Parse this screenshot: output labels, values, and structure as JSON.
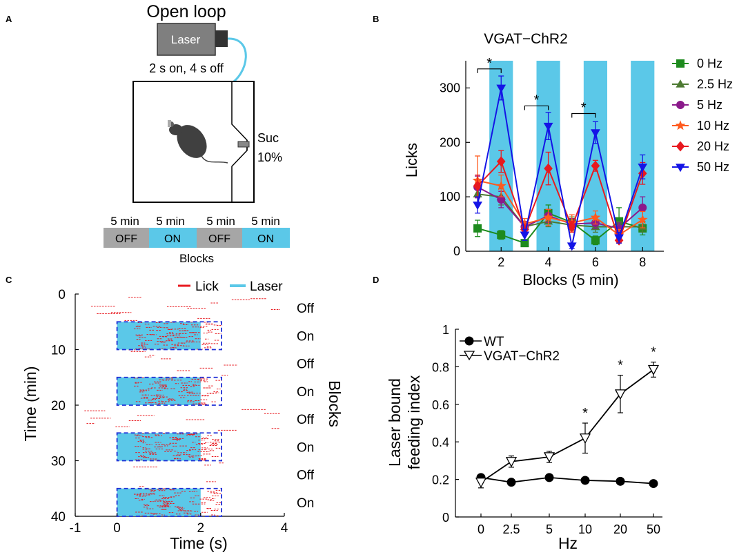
{
  "panel_labels": [
    "A",
    "B",
    "C",
    "D"
  ],
  "colors": {
    "laser_blue": "#5bc8e8",
    "lick_red": "#e8191f",
    "box_gray": "#7f7f7f",
    "mouse_dark": "#404040",
    "dashed_blue": "#1f2fd6"
  },
  "panel_a": {
    "title": "Open loop",
    "laser_label": "Laser",
    "schedule": "2 s on, 4 s off",
    "sucrose_label": "Suc",
    "sucrose_pct": "10%",
    "blocks": [
      {
        "duration": "5 min",
        "state": "OFF"
      },
      {
        "duration": "5 min",
        "state": "ON"
      },
      {
        "duration": "5 min",
        "state": "OFF"
      },
      {
        "duration": "5 min",
        "state": "ON"
      }
    ],
    "blocks_label": "Blocks"
  },
  "chart_data": [
    {
      "panel": "B",
      "type": "line",
      "title": "VGAT−ChR2",
      "xlabel": "Blocks (5 min)",
      "ylabel": "Licks",
      "xlim": [
        0.5,
        8.9
      ],
      "ylim": [
        0,
        350
      ],
      "xticks": [
        2,
        4,
        6,
        8
      ],
      "yticks": [
        0,
        100,
        200,
        300
      ],
      "laser_on_blocks": [
        2,
        4,
        6,
        8
      ],
      "x": [
        1,
        2,
        3,
        4,
        5,
        6,
        7,
        8
      ],
      "series": [
        {
          "name": "0 Hz",
          "color": "#1e8b1e",
          "marker": "square",
          "values": [
            42,
            30,
            15,
            70,
            53,
            20,
            55,
            42
          ],
          "errors": [
            15,
            8,
            5,
            15,
            10,
            8,
            25,
            12
          ]
        },
        {
          "name": "2.5 Hz",
          "color": "#4d7a32",
          "marker": "triangle-up",
          "values": [
            105,
            100,
            45,
            55,
            48,
            45,
            45,
            45
          ],
          "errors": [
            15,
            15,
            10,
            10,
            10,
            10,
            10,
            10
          ]
        },
        {
          "name": "5 Hz",
          "color": "#8b1a8b",
          "marker": "circle",
          "values": [
            118,
            95,
            45,
            65,
            50,
            52,
            42,
            80
          ],
          "errors": [
            20,
            15,
            10,
            12,
            10,
            10,
            10,
            20
          ]
        },
        {
          "name": "10 Hz",
          "color": "#ff5a1e",
          "marker": "star",
          "values": [
            130,
            120,
            50,
            62,
            52,
            62,
            30,
            58
          ],
          "errors": [
            45,
            20,
            10,
            15,
            15,
            12,
            10,
            15
          ]
        },
        {
          "name": "20 Hz",
          "color": "#e8191f",
          "marker": "diamond",
          "values": [
            120,
            165,
            40,
            152,
            45,
            157,
            20,
            143
          ],
          "errors": [
            20,
            20,
            10,
            30,
            10,
            10,
            5,
            20
          ]
        },
        {
          "name": "50 Hz",
          "color": "#1414e6",
          "marker": "triangle-down",
          "values": [
            85,
            300,
            30,
            230,
            10,
            218,
            25,
            155
          ],
          "errors": [
            15,
            22,
            10,
            25,
            5,
            20,
            10,
            22
          ]
        }
      ],
      "significance": [
        {
          "x1": 1,
          "x2": 2,
          "y": 335,
          "label": "*"
        },
        {
          "x1": 3,
          "x2": 4,
          "y": 267,
          "label": "*"
        },
        {
          "x1": 5,
          "x2": 6,
          "y": 253,
          "label": "*"
        }
      ]
    },
    {
      "panel": "C",
      "type": "scatter",
      "xlabel": "Time (s)",
      "ylabel": "Time (min)",
      "right_label": "Blocks",
      "xlim": [
        -1,
        4
      ],
      "ylim": [
        0,
        40
      ],
      "xticks": [
        -1,
        0,
        2,
        4
      ],
      "yticks": [
        0,
        10,
        20,
        30,
        40
      ],
      "legend": [
        "Lick",
        "Laser"
      ],
      "laser_window_s": [
        0,
        2
      ],
      "dashed_window_s": [
        0,
        2.5
      ],
      "on_blocks_min": [
        [
          5,
          10
        ],
        [
          15,
          20
        ],
        [
          25,
          30
        ],
        [
          35,
          40
        ]
      ],
      "block_labels": [
        "Off",
        "On",
        "Off",
        "On",
        "Off",
        "On",
        "Off",
        "On"
      ]
    },
    {
      "panel": "D",
      "type": "line",
      "xlabel": "Hz",
      "ylabel_line1": "Laser bound",
      "ylabel_line2": "feeding index",
      "categories": [
        "0",
        "2.5",
        "5",
        "10",
        "20",
        "50"
      ],
      "ylim": [
        0,
        1
      ],
      "yticks": [
        0,
        0.2,
        0.4,
        0.6,
        0.8,
        1
      ],
      "ytick_labels": [
        "0",
        "0.2",
        "0.4",
        "0.6",
        "0.8",
        "1"
      ],
      "series": [
        {
          "name": "WT",
          "marker": "circle-filled",
          "values": [
            0.21,
            0.185,
            0.21,
            0.195,
            0.19,
            0.178
          ],
          "errors": [
            0.01,
            0.01,
            0.01,
            0.005,
            0.005,
            0.005
          ]
        },
        {
          "name": "VGAT−ChR2",
          "marker": "triangle-down-open",
          "values": [
            0.185,
            0.295,
            0.32,
            0.42,
            0.655,
            0.785
          ],
          "errors": [
            0.03,
            0.03,
            0.03,
            0.08,
            0.1,
            0.04
          ]
        }
      ],
      "significance_at": [
        "10",
        "20",
        "50"
      ],
      "significance_label": "*"
    }
  ]
}
